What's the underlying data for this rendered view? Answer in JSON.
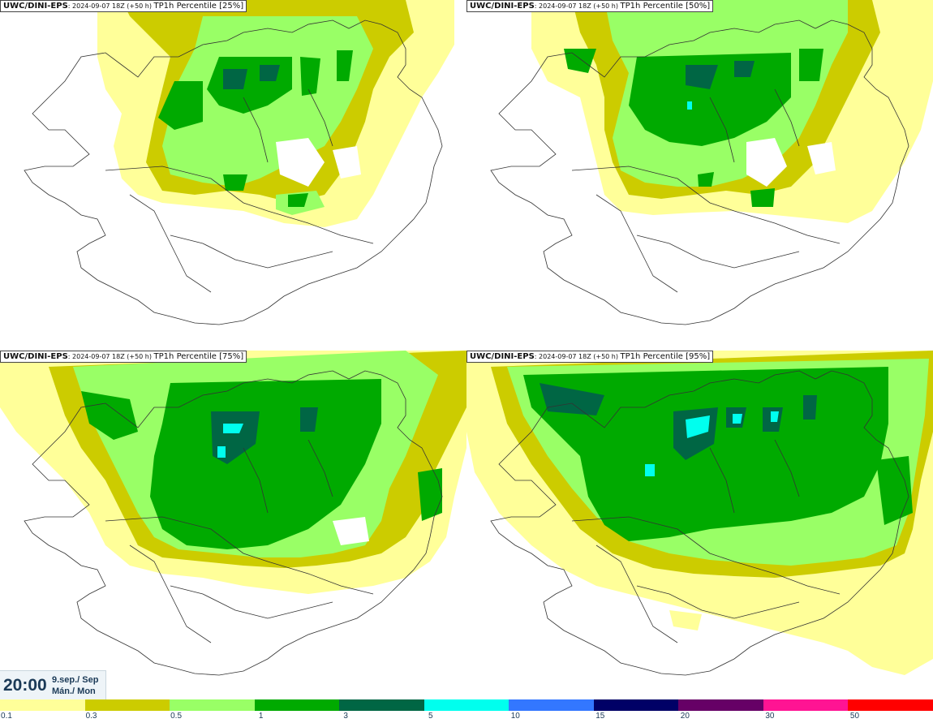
{
  "panels": [
    {
      "source": "UWC/DINI-EPS",
      "run": "2024-09-07 18Z (+50 h)",
      "field": "TP1h Percentile [25%]"
    },
    {
      "source": "UWC/DINI-EPS",
      "run": "2024-09-07 18Z (+50 h)",
      "field": "TP1h Percentile [50%]"
    },
    {
      "source": "UWC/DINI-EPS",
      "run": "2024-09-07 18Z (+50 h)",
      "field": "TP1h Percentile [75%]"
    },
    {
      "source": "UWC/DINI-EPS",
      "run": "2024-09-07 18Z (+50 h)",
      "field": "TP1h Percentile [95%]"
    }
  ],
  "valid_time": {
    "time": "20:00",
    "date_line1": "9.sep./ Sep",
    "date_line2": "Mán./ Mon"
  },
  "legend": {
    "colors": [
      "#ffff99",
      "#cccc00",
      "#99ff66",
      "#00aa00",
      "#006644",
      "#00ffee",
      "#3377ff",
      "#000066",
      "#660066",
      "#ff1493",
      "#ff0000"
    ],
    "labels": [
      "0.1",
      "0.3",
      "0.5",
      "1",
      "3",
      "5",
      "10",
      "15",
      "20",
      "30",
      "50"
    ]
  }
}
